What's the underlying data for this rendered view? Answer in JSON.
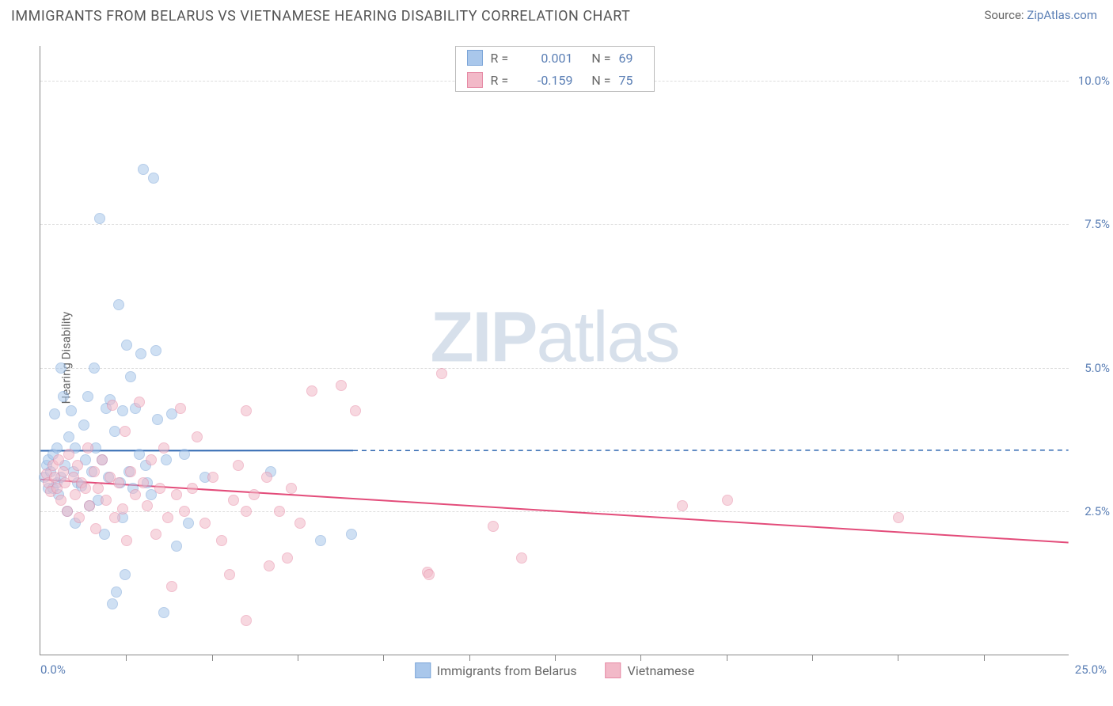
{
  "title": "IMMIGRANTS FROM BELARUS VS VIETNAMESE HEARING DISABILITY CORRELATION CHART",
  "source_label": "Source: ",
  "source_name": "ZipAtlas.com",
  "watermark_zip": "ZIP",
  "watermark_atlas": "atlas",
  "chart": {
    "type": "scatter",
    "ylabel": "Hearing Disability",
    "xlim": [
      0,
      25
    ],
    "ylim": [
      0,
      10.6
    ],
    "y_ticks": [
      2.5,
      5.0,
      7.5,
      10.0
    ],
    "y_tick_labels": [
      "2.5%",
      "5.0%",
      "7.5%",
      "10.0%"
    ],
    "x_min_label": "0.0%",
    "x_max_label": "25.0%",
    "x_minor_ticks": [
      2.08,
      4.17,
      6.25,
      8.33,
      10.42,
      12.5,
      14.58,
      16.67,
      18.75,
      20.83,
      22.92
    ],
    "background_color": "#ffffff",
    "grid_color": "#dddddd",
    "marker_radius": 7,
    "marker_opacity": 0.55,
    "series": [
      {
        "id": "belarus",
        "label": "Immigrants from Belarus",
        "color_fill": "#a9c7eb",
        "color_stroke": "#7ba5d8",
        "r": "0.001",
        "n": "69",
        "trend": {
          "y_start": 3.55,
          "y_end": 3.56,
          "solid_until_x": 7.6,
          "color": "#2f67b1",
          "width": 2
        },
        "points": [
          [
            0.1,
            3.1
          ],
          [
            0.15,
            3.3
          ],
          [
            0.2,
            2.9
          ],
          [
            0.2,
            3.4
          ],
          [
            0.25,
            3.2
          ],
          [
            0.3,
            3.5
          ],
          [
            0.3,
            2.9
          ],
          [
            0.35,
            4.2
          ],
          [
            0.4,
            3.0
          ],
          [
            0.4,
            3.6
          ],
          [
            0.45,
            2.8
          ],
          [
            0.5,
            5.0
          ],
          [
            0.5,
            3.1
          ],
          [
            0.55,
            4.5
          ],
          [
            0.6,
            3.3
          ],
          [
            0.65,
            2.5
          ],
          [
            0.7,
            3.8
          ],
          [
            0.75,
            4.25
          ],
          [
            0.8,
            3.2
          ],
          [
            0.85,
            2.3
          ],
          [
            0.85,
            3.6
          ],
          [
            0.9,
            3.0
          ],
          [
            1.0,
            2.95
          ],
          [
            1.05,
            4.0
          ],
          [
            1.1,
            3.4
          ],
          [
            1.15,
            4.5
          ],
          [
            1.2,
            2.6
          ],
          [
            1.25,
            3.2
          ],
          [
            1.3,
            5.0
          ],
          [
            1.35,
            3.6
          ],
          [
            1.4,
            2.7
          ],
          [
            1.45,
            7.6
          ],
          [
            1.5,
            3.4
          ],
          [
            1.55,
            2.1
          ],
          [
            1.6,
            4.3
          ],
          [
            1.65,
            3.1
          ],
          [
            1.7,
            4.45
          ],
          [
            1.75,
            0.9
          ],
          [
            1.8,
            3.9
          ],
          [
            1.85,
            1.1
          ],
          [
            1.9,
            6.1
          ],
          [
            1.95,
            3.0
          ],
          [
            2.0,
            2.4
          ],
          [
            2.0,
            4.25
          ],
          [
            2.05,
            1.4
          ],
          [
            2.1,
            5.4
          ],
          [
            2.15,
            3.2
          ],
          [
            2.2,
            4.85
          ],
          [
            2.25,
            2.9
          ],
          [
            2.3,
            4.3
          ],
          [
            2.4,
            3.5
          ],
          [
            2.45,
            5.25
          ],
          [
            2.5,
            8.45
          ],
          [
            2.55,
            3.3
          ],
          [
            2.6,
            3.0
          ],
          [
            2.7,
            2.8
          ],
          [
            2.75,
            8.3
          ],
          [
            2.8,
            5.3
          ],
          [
            2.85,
            4.1
          ],
          [
            3.0,
            0.75
          ],
          [
            3.05,
            3.4
          ],
          [
            3.2,
            4.2
          ],
          [
            3.3,
            1.9
          ],
          [
            3.5,
            3.5
          ],
          [
            3.6,
            2.3
          ],
          [
            4.0,
            3.1
          ],
          [
            5.6,
            3.2
          ],
          [
            6.8,
            2.0
          ],
          [
            7.55,
            2.1
          ]
        ]
      },
      {
        "id": "vietnamese",
        "label": "Vietnamese",
        "color_fill": "#f2b9c8",
        "color_stroke": "#e68aa5",
        "r": "-0.159",
        "n": "75",
        "trend": {
          "y_start": 3.05,
          "y_end": 1.95,
          "solid_until_x": 25,
          "color": "#e34c7a",
          "width": 2
        },
        "points": [
          [
            0.15,
            3.15
          ],
          [
            0.2,
            3.0
          ],
          [
            0.25,
            2.85
          ],
          [
            0.3,
            3.3
          ],
          [
            0.35,
            3.1
          ],
          [
            0.4,
            2.9
          ],
          [
            0.45,
            3.4
          ],
          [
            0.5,
            2.7
          ],
          [
            0.55,
            3.2
          ],
          [
            0.6,
            3.0
          ],
          [
            0.65,
            2.5
          ],
          [
            0.7,
            3.5
          ],
          [
            0.8,
            3.1
          ],
          [
            0.85,
            2.8
          ],
          [
            0.9,
            3.3
          ],
          [
            0.95,
            2.4
          ],
          [
            1.0,
            3.0
          ],
          [
            1.1,
            2.9
          ],
          [
            1.15,
            3.6
          ],
          [
            1.2,
            2.6
          ],
          [
            1.3,
            3.2
          ],
          [
            1.35,
            2.2
          ],
          [
            1.4,
            2.9
          ],
          [
            1.5,
            3.4
          ],
          [
            1.6,
            2.7
          ],
          [
            1.7,
            3.1
          ],
          [
            1.75,
            4.35
          ],
          [
            1.8,
            2.4
          ],
          [
            1.9,
            3.0
          ],
          [
            2.0,
            2.55
          ],
          [
            2.05,
            3.9
          ],
          [
            2.1,
            2.0
          ],
          [
            2.2,
            3.2
          ],
          [
            2.3,
            2.8
          ],
          [
            2.4,
            4.4
          ],
          [
            2.5,
            3.0
          ],
          [
            2.6,
            2.6
          ],
          [
            2.7,
            3.4
          ],
          [
            2.8,
            2.1
          ],
          [
            2.9,
            2.9
          ],
          [
            3.0,
            3.6
          ],
          [
            3.1,
            2.4
          ],
          [
            3.2,
            1.2
          ],
          [
            3.3,
            2.8
          ],
          [
            3.4,
            4.3
          ],
          [
            3.5,
            2.5
          ],
          [
            3.7,
            2.9
          ],
          [
            3.8,
            3.8
          ],
          [
            4.0,
            2.3
          ],
          [
            4.2,
            3.1
          ],
          [
            4.4,
            2.0
          ],
          [
            4.6,
            1.4
          ],
          [
            4.7,
            2.7
          ],
          [
            4.8,
            3.3
          ],
          [
            5.0,
            0.6
          ],
          [
            5.0,
            2.5
          ],
          [
            5.0,
            4.25
          ],
          [
            5.2,
            2.8
          ],
          [
            5.5,
            3.1
          ],
          [
            5.55,
            1.55
          ],
          [
            5.8,
            2.5
          ],
          [
            6.0,
            1.7
          ],
          [
            6.1,
            2.9
          ],
          [
            6.3,
            2.3
          ],
          [
            6.6,
            4.6
          ],
          [
            7.3,
            4.7
          ],
          [
            7.65,
            4.25
          ],
          [
            9.4,
            1.45
          ],
          [
            9.45,
            1.4
          ],
          [
            9.75,
            4.9
          ],
          [
            11.0,
            2.25
          ],
          [
            11.7,
            1.7
          ],
          [
            15.6,
            2.6
          ],
          [
            16.7,
            2.7
          ],
          [
            20.85,
            2.4
          ]
        ]
      }
    ]
  },
  "legend_top_labels": {
    "r": "R  =",
    "n": "N  ="
  }
}
